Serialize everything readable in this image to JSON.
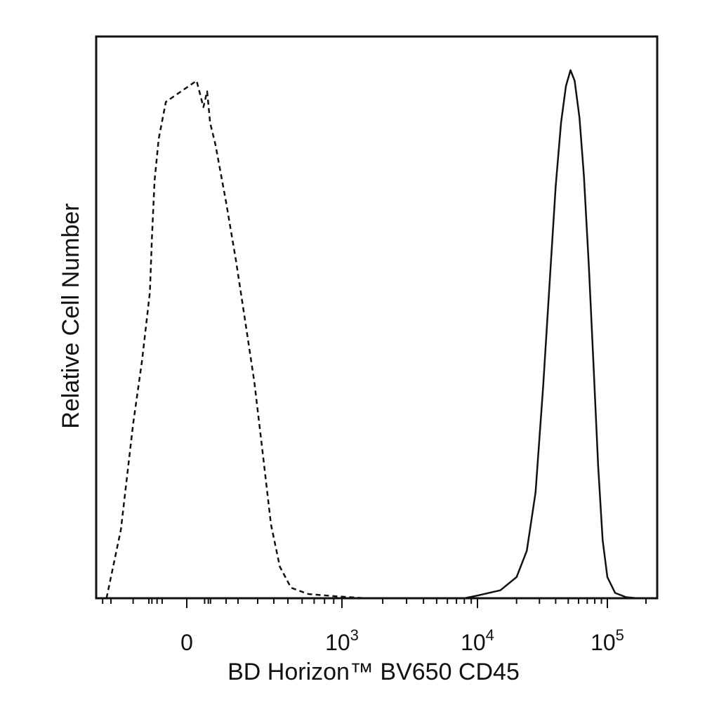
{
  "chart_data": {
    "type": "line",
    "title": "",
    "xlabel": "BD Horizon™ BV650 CD45",
    "ylabel": "Relative Cell Number",
    "x_scale": "biexponential",
    "x_ticks": [
      {
        "value": 0,
        "base": "0",
        "exp": ""
      },
      {
        "value": 1000,
        "base": "10",
        "exp": "3"
      },
      {
        "value": 10000,
        "base": "10",
        "exp": "4"
      },
      {
        "value": 100000,
        "base": "10",
        "exp": "5"
      }
    ],
    "xlim": [
      -500,
      200000
    ],
    "ylim": [
      0,
      1
    ],
    "y_ticks_shown": false,
    "grid": false,
    "legend": "none",
    "series": [
      {
        "style": "dashed",
        "points": [
          [
            -350,
            0.0
          ],
          [
            -300,
            0.04
          ],
          [
            -250,
            0.13
          ],
          [
            -200,
            0.33
          ],
          [
            -170,
            0.45
          ],
          [
            -130,
            0.58
          ],
          [
            -100,
            0.68
          ],
          [
            -70,
            0.79
          ],
          [
            -40,
            0.87
          ],
          [
            -15,
            0.94
          ],
          [
            5,
            0.98
          ],
          [
            20,
            0.93
          ],
          [
            40,
            0.96
          ],
          [
            70,
            0.9
          ],
          [
            110,
            0.86
          ],
          [
            150,
            0.75
          ],
          [
            190,
            0.64
          ],
          [
            230,
            0.53
          ],
          [
            280,
            0.41
          ],
          [
            330,
            0.27
          ],
          [
            380,
            0.14
          ],
          [
            440,
            0.06
          ],
          [
            520,
            0.02
          ],
          [
            650,
            0.008
          ],
          [
            900,
            0.004
          ],
          [
            1500,
            0.0
          ],
          [
            5000,
            0.0
          ],
          [
            20000,
            0.0
          ],
          [
            150000,
            0.0
          ]
        ]
      },
      {
        "style": "solid",
        "points": [
          [
            1000,
            0.0
          ],
          [
            8000,
            0.0
          ],
          [
            10000,
            0.005
          ],
          [
            15000,
            0.015
          ],
          [
            20000,
            0.04
          ],
          [
            24000,
            0.09
          ],
          [
            28000,
            0.2
          ],
          [
            32000,
            0.4
          ],
          [
            36000,
            0.6
          ],
          [
            40000,
            0.78
          ],
          [
            44000,
            0.9
          ],
          [
            48000,
            0.97
          ],
          [
            52000,
            1.0
          ],
          [
            56000,
            0.98
          ],
          [
            61000,
            0.91
          ],
          [
            66000,
            0.8
          ],
          [
            72000,
            0.63
          ],
          [
            78000,
            0.45
          ],
          [
            85000,
            0.25
          ],
          [
            92000,
            0.11
          ],
          [
            100000,
            0.04
          ],
          [
            115000,
            0.01
          ],
          [
            140000,
            0.002
          ],
          [
            170000,
            0.0
          ]
        ]
      }
    ]
  }
}
